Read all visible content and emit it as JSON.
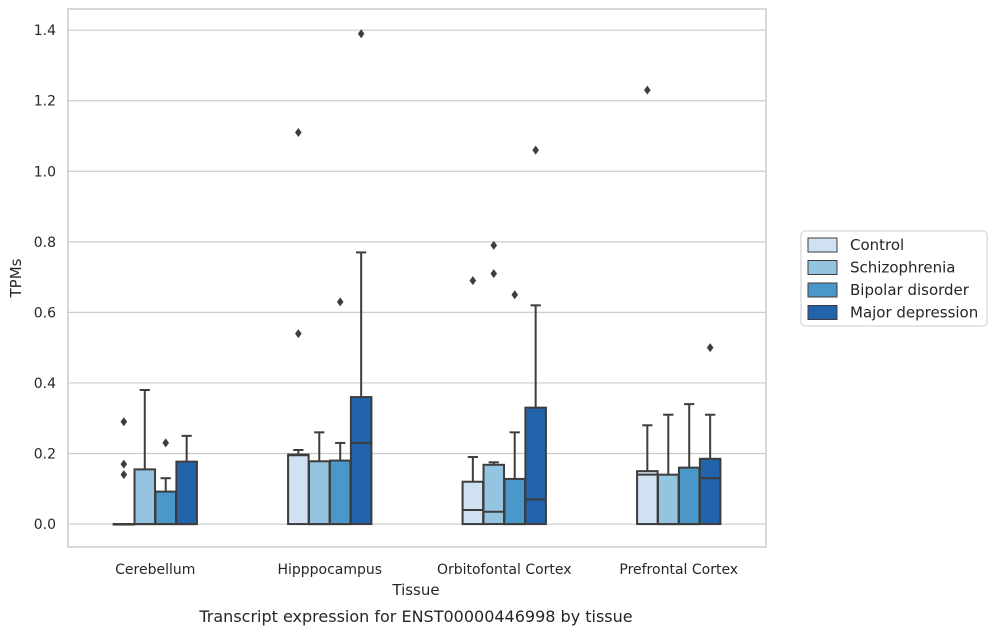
{
  "caption": "Transcript expression for ENST00000446998 by tissue",
  "chart_data": {
    "type": "box",
    "xlabel": "Tissue",
    "ylabel": "TPMs",
    "ylim": [
      -0.065,
      1.46
    ],
    "yticks": [
      0.0,
      0.2,
      0.4,
      0.6,
      0.8,
      1.0,
      1.2,
      1.4
    ],
    "grid": "horizontal",
    "legend_position": "right",
    "categories": [
      "Cerebellum",
      "Hipppocampus",
      "Orbitofontal Cortex",
      "Prefrontal Cortex"
    ],
    "series": [
      {
        "name": "Control",
        "color": "#d0e1f2",
        "boxes": [
          {
            "q1": 0.0,
            "median": 0.0,
            "q3": 0.0,
            "whisker_low": 0.0,
            "whisker_high": 0.0,
            "outliers": [
              0.14,
              0.17,
              0.29
            ]
          },
          {
            "q1": 0.0,
            "median": 0.195,
            "q3": 0.197,
            "whisker_low": 0.0,
            "whisker_high": 0.21,
            "outliers": [
              0.54,
              1.11
            ]
          },
          {
            "q1": 0.0,
            "median": 0.04,
            "q3": 0.12,
            "whisker_low": 0.0,
            "whisker_high": 0.19,
            "outliers": [
              0.69
            ]
          },
          {
            "q1": 0.0,
            "median": 0.14,
            "q3": 0.15,
            "whisker_low": 0.0,
            "whisker_high": 0.28,
            "outliers": [
              1.23
            ]
          }
        ]
      },
      {
        "name": "Schizophrenia",
        "color": "#94c4df",
        "boxes": [
          {
            "q1": 0.0,
            "median": 0.0,
            "q3": 0.155,
            "whisker_low": 0.0,
            "whisker_high": 0.38,
            "outliers": []
          },
          {
            "q1": 0.0,
            "median": 0.0,
            "q3": 0.178,
            "whisker_low": 0.0,
            "whisker_high": 0.26,
            "outliers": []
          },
          {
            "q1": 0.0,
            "median": 0.035,
            "q3": 0.168,
            "whisker_low": 0.0,
            "whisker_high": 0.175,
            "outliers": [
              0.71,
              0.79
            ]
          },
          {
            "q1": 0.0,
            "median": 0.0,
            "q3": 0.14,
            "whisker_low": 0.0,
            "whisker_high": 0.31,
            "outliers": []
          }
        ]
      },
      {
        "name": "Bipolar disorder",
        "color": "#4a98c9",
        "boxes": [
          {
            "q1": 0.0,
            "median": 0.0,
            "q3": 0.092,
            "whisker_low": 0.0,
            "whisker_high": 0.13,
            "outliers": [
              0.23
            ]
          },
          {
            "q1": 0.0,
            "median": 0.0,
            "q3": 0.18,
            "whisker_low": 0.0,
            "whisker_high": 0.23,
            "outliers": [
              0.63
            ]
          },
          {
            "q1": 0.0,
            "median": 0.0,
            "q3": 0.128,
            "whisker_low": 0.0,
            "whisker_high": 0.26,
            "outliers": [
              0.65
            ]
          },
          {
            "q1": 0.0,
            "median": 0.0,
            "q3": 0.16,
            "whisker_low": 0.0,
            "whisker_high": 0.34,
            "outliers": []
          }
        ]
      },
      {
        "name": "Major depression",
        "color": "#2164ab",
        "boxes": [
          {
            "q1": 0.0,
            "median": 0.0,
            "q3": 0.177,
            "whisker_low": 0.0,
            "whisker_high": 0.25,
            "outliers": []
          },
          {
            "q1": 0.0,
            "median": 0.23,
            "q3": 0.36,
            "whisker_low": 0.0,
            "whisker_high": 0.77,
            "outliers": [
              1.39
            ]
          },
          {
            "q1": 0.0,
            "median": 0.07,
            "q3": 0.33,
            "whisker_low": 0.0,
            "whisker_high": 0.62,
            "outliers": [
              1.06
            ]
          },
          {
            "q1": 0.0,
            "median": 0.13,
            "q3": 0.185,
            "whisker_low": 0.0,
            "whisker_high": 0.31,
            "outliers": [
              0.5
            ]
          }
        ]
      }
    ]
  }
}
